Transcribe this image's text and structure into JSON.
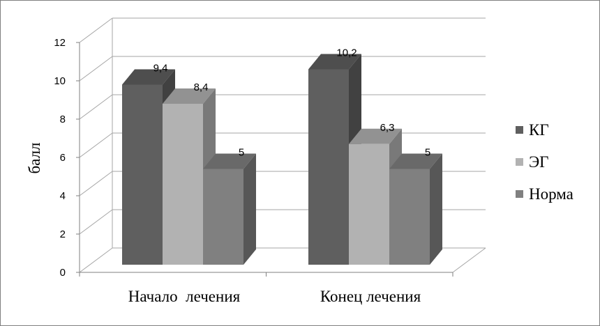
{
  "chart_data": {
    "type": "bar",
    "title": "",
    "xlabel": "",
    "ylabel": "балл",
    "ylim": [
      0,
      12
    ],
    "yticks": [
      "0",
      "2",
      "4",
      "6",
      "8",
      "10",
      "12"
    ],
    "grid": true,
    "three_d": true,
    "legend_position": "right",
    "categories": [
      "Начало  лечения",
      "Конец лечения"
    ],
    "series": [
      {
        "name": "КГ",
        "values": [
          9.4,
          10.2
        ],
        "labels": [
          "9,4",
          "10,2"
        ],
        "color": "#5f5f5f"
      },
      {
        "name": "ЭГ",
        "values": [
          8.4,
          6.3
        ],
        "labels": [
          "8,4",
          "6,3"
        ],
        "color": "#b2b2b2"
      },
      {
        "name": "Норма",
        "values": [
          5,
          5
        ],
        "labels": [
          "5",
          "5"
        ],
        "color": "#808080"
      }
    ]
  }
}
